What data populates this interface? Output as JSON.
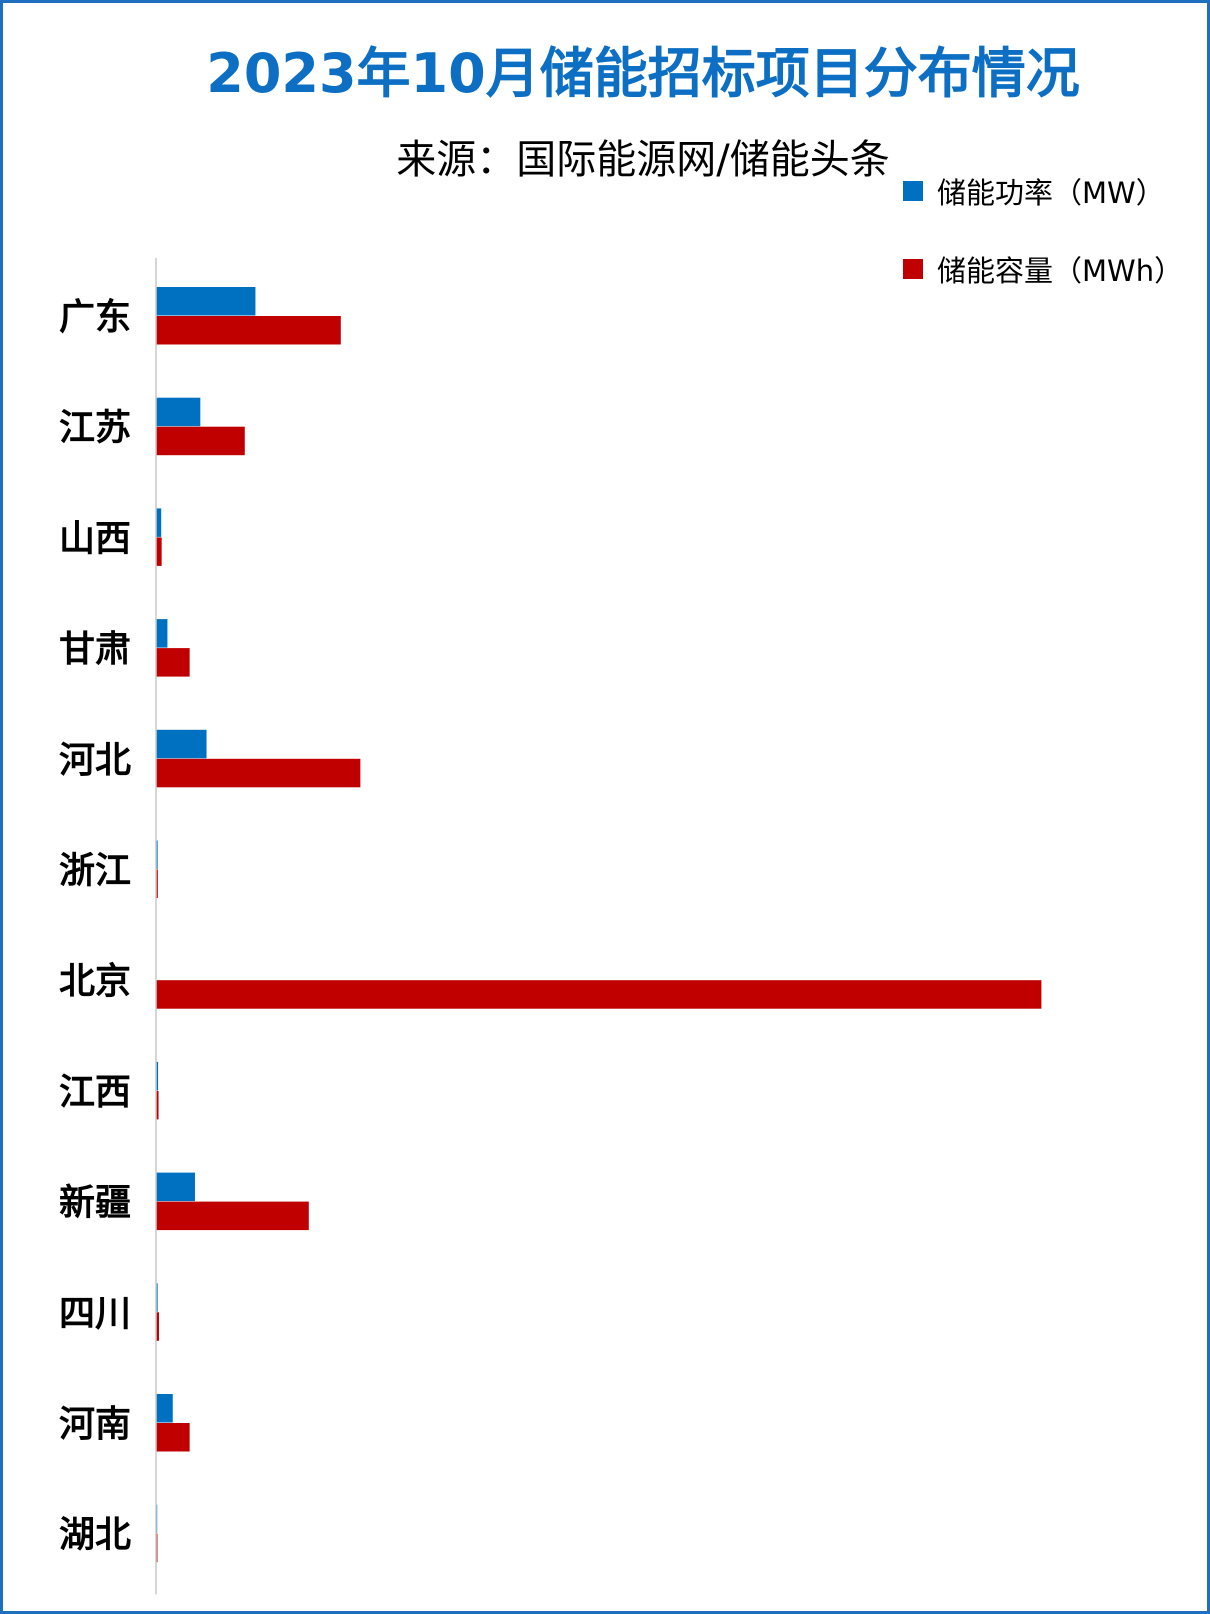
{
  "chart_data": {
    "type": "bar",
    "orientation": "horizontal",
    "title": "2023年10月储能招标项目分布情况",
    "subtitle": "来源：国际能源网/储能头条",
    "categories": [
      "广东",
      "江苏",
      "山西",
      "甘肃",
      "河北",
      "浙江",
      "北京",
      "江西",
      "新疆",
      "四川",
      "河南",
      "湖北"
    ],
    "series": [
      {
        "name": "储能功率（MW）",
        "color": "#0070c0",
        "values": [
          1110,
          490,
          50,
          120,
          560,
          10,
          0,
          15,
          430,
          10,
          180,
          5
        ]
      },
      {
        "name": "储能容量（MWh）",
        "color": "#c00000",
        "values": [
          2070,
          990,
          55,
          370,
          2290,
          12,
          9950,
          20,
          1710,
          25,
          370,
          8
        ]
      }
    ],
    "xlim": [
      0,
      11000
    ],
    "grid": false,
    "legend": "top-right"
  }
}
